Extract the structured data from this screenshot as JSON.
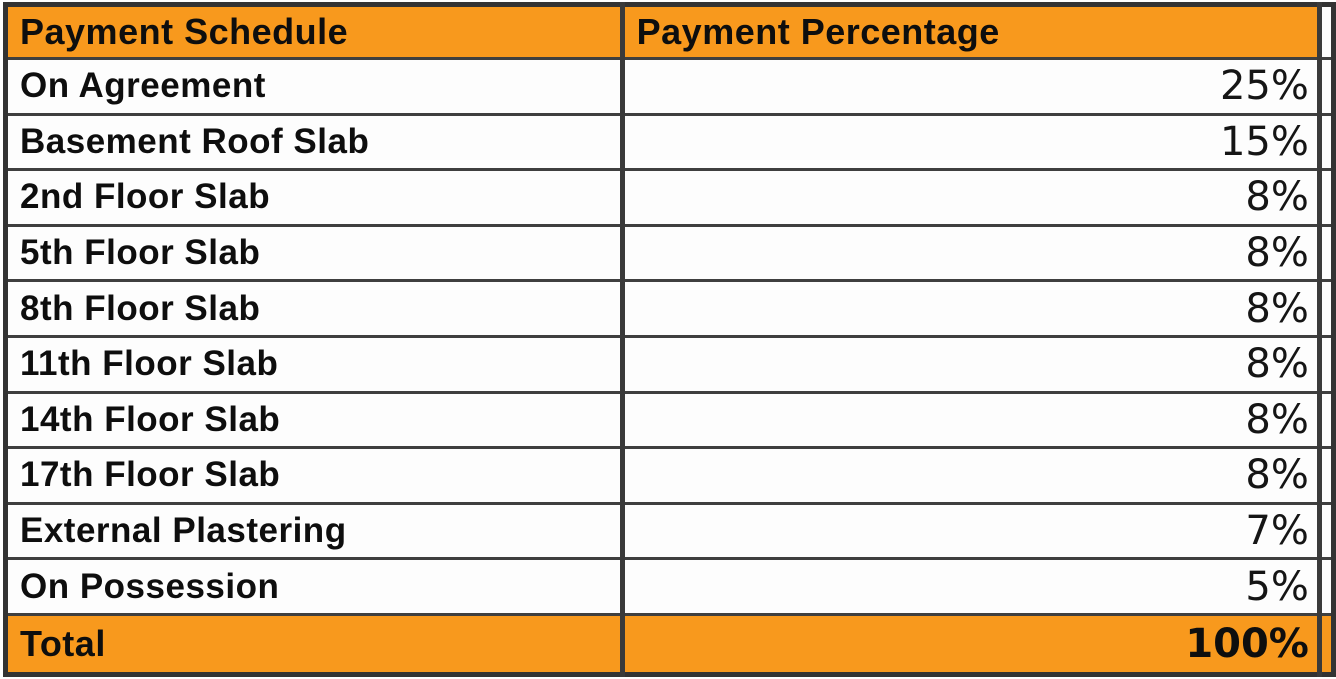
{
  "chart_data": {
    "type": "table",
    "columns": [
      "Payment Schedule",
      "Payment Percentage"
    ],
    "rows": [
      {
        "label": "On Agreement",
        "value": "25%"
      },
      {
        "label": "Basement Roof Slab",
        "value": "15%"
      },
      {
        "label": "2nd Floor Slab",
        "value": "8%"
      },
      {
        "label": "5th Floor Slab",
        "value": "8%"
      },
      {
        "label": "8th Floor Slab",
        "value": "8%"
      },
      {
        "label": "11th Floor Slab",
        "value": "8%"
      },
      {
        "label": "14th Floor Slab",
        "value": "8%"
      },
      {
        "label": "17th Floor Slab",
        "value": "8%"
      },
      {
        "label": "External Plastering",
        "value": "7%"
      },
      {
        "label": "On Possession",
        "value": "5%"
      }
    ],
    "total": {
      "label": "Total",
      "value": "100%"
    },
    "values_numeric": [
      25,
      15,
      8,
      8,
      8,
      8,
      8,
      8,
      7,
      5
    ],
    "total_numeric": 100
  },
  "colors": {
    "header_bg": "#F8991D",
    "total_bg": "#F8991D",
    "border": "#3A3A3A",
    "text": "#0E0E0E",
    "row_bg": "#FDFDFD"
  }
}
